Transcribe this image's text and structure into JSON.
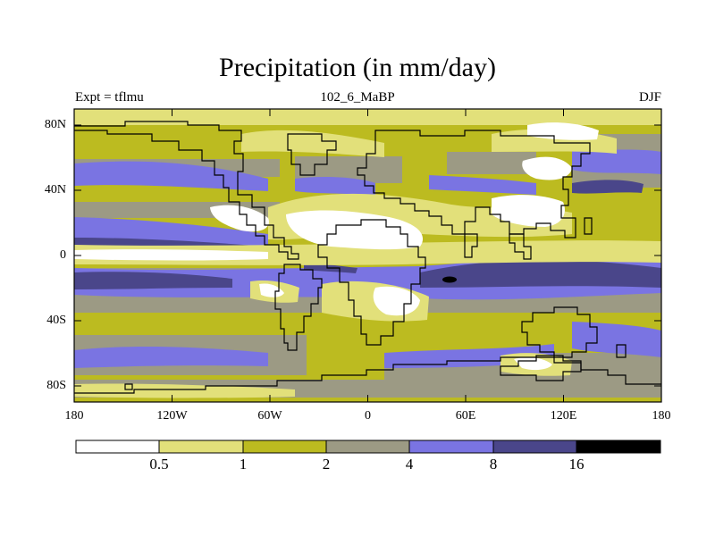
{
  "title": "Precipitation (in mm/day)",
  "left_label": "Expt = tflmu",
  "center_label": "102_6_MaBP",
  "right_label": "DJF",
  "lat_ticks": [
    "80N",
    "40N",
    "0",
    "40S",
    "80S"
  ],
  "lon_ticks": [
    "180",
    "120W",
    "60W",
    "0",
    "60E",
    "120E",
    "180"
  ],
  "colorbar": {
    "levels": [
      "0.5",
      "1",
      "2",
      "4",
      "8",
      "16"
    ],
    "colors": [
      "#ffffff",
      "#e2e07a",
      "#bcbb20",
      "#9c9a84",
      "#7a74e2",
      "#4a468a",
      "#000000"
    ]
  }
}
